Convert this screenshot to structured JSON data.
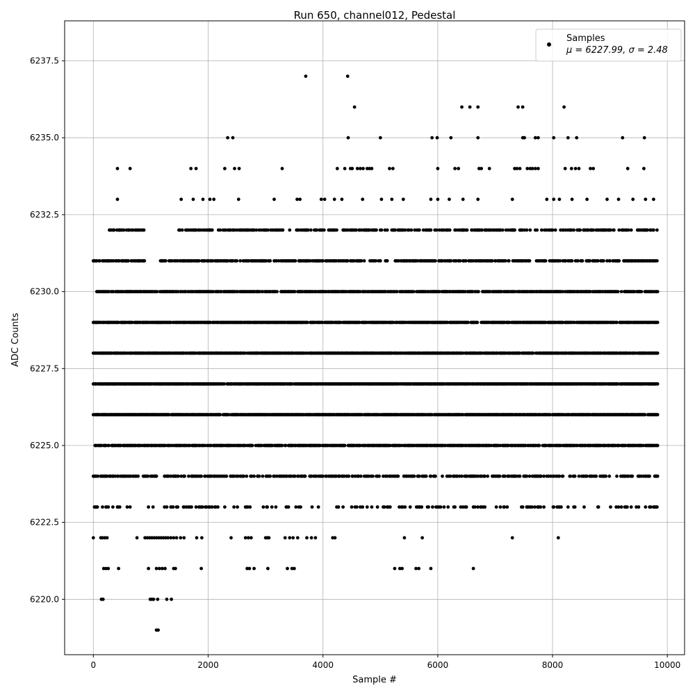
{
  "chart_data": {
    "type": "scatter",
    "title": "Run 650, channel012, Pedestal",
    "xlabel": "Sample #",
    "ylabel": "ADC Counts",
    "xlim": [
      -500,
      10300
    ],
    "ylim": [
      6218.2,
      6238.8
    ],
    "xticks": [
      0,
      2000,
      4000,
      6000,
      8000,
      10000
    ],
    "xtick_labels": [
      "0",
      "2000",
      "4000",
      "6000",
      "8000",
      "10000"
    ],
    "yticks": [
      6220.0,
      6222.5,
      6225.0,
      6227.5,
      6230.0,
      6232.5,
      6235.0,
      6237.5
    ],
    "ytick_labels": [
      "6220.0",
      "6222.5",
      "6225.0",
      "6227.5",
      "6230.0",
      "6232.5",
      "6235.0",
      "6237.5"
    ],
    "grid": true,
    "legend_position": "top-right",
    "marker_color": "#000000",
    "series": [
      {
        "name": "Samples",
        "label_line2": "μ = 6227.99, σ = 2.48",
        "mean": 6227.99,
        "sigma": 2.48,
        "x_range": [
          0,
          9840
        ],
        "sample_spacing": 10,
        "levels": [
          {
            "y": 6237,
            "x": [
              3700,
              4430
            ]
          },
          {
            "y": 6236,
            "x": [
              4550,
              6420,
              6560,
              6700,
              7400,
              7480,
              8200
            ]
          },
          {
            "y": 6235,
            "x": [
              2340,
              2430,
              4440,
              5000,
              5900,
              5990,
              6230,
              6700,
              7480,
              7510,
              7700,
              7750,
              8020,
              8270,
              8420,
              9220,
              9600
            ]
          },
          {
            "y": 6234,
            "x": [
              420,
              640,
              1700,
              1790,
              2290,
              2460,
              2540,
              3290,
              4250,
              4380,
              4480,
              4510,
              4600,
              4650,
              4700,
              4770,
              4810,
              4850,
              5160,
              5220,
              6000,
              6300,
              6360,
              6720,
              6760,
              6900,
              7340,
              7380,
              7430,
              7560,
              7610,
              7650,
              7700,
              7750,
              8220,
              8330,
              8400,
              8460,
              8660,
              8710,
              9310,
              9590
            ]
          },
          {
            "y": 6233,
            "x": [
              420,
              1530,
              1740,
              1910,
              2030,
              2100,
              2530,
              3150,
              3550,
              3600,
              3970,
              4030,
              4200,
              4330,
              4690,
              5020,
              5200,
              5400,
              5880,
              6000,
              6200,
              6440,
              6700,
              7300,
              7900,
              8020,
              8120,
              8340,
              8600,
              8950,
              9150,
              9400,
              9620,
              9760
            ]
          }
        ],
        "bands": [
          {
            "y": 6232,
            "x_start": 280,
            "x_end": 9830,
            "density": 0.38,
            "skip": [
              [
                900,
                1450
              ],
              [
                3450,
                3520
              ]
            ]
          },
          {
            "y": 6231,
            "x_start": 0,
            "x_end": 9830,
            "density": 0.5,
            "skip": [
              [
                900,
                1150
              ]
            ]
          },
          {
            "y": 6230,
            "x_start": 60,
            "x_end": 9830,
            "density": 0.62
          },
          {
            "y": 6229,
            "x_start": 0,
            "x_end": 9830,
            "density": 0.72
          },
          {
            "y": 6228,
            "x_start": 0,
            "x_end": 9830,
            "density": 0.8
          },
          {
            "y": 6227,
            "x_start": 0,
            "x_end": 9830,
            "density": 0.85
          },
          {
            "y": 6226,
            "x_start": 0,
            "x_end": 9830,
            "density": 0.78
          },
          {
            "y": 6225,
            "x_start": 0,
            "x_end": 9830,
            "density": 0.66
          },
          {
            "y": 6224,
            "x_start": 0,
            "x_end": 9830,
            "density": 0.36
          },
          {
            "y": 6223,
            "x_start": 0,
            "x_end": 9830,
            "density": 0.16
          }
        ],
        "sparse_levels": [
          {
            "y": 6222,
            "x": [
              0,
              130,
              160,
              200,
              240,
              760,
              900,
              940,
              980,
              1020,
              1060,
              1100,
              1140,
              1180,
              1220,
              1260,
              1300,
              1350,
              1400,
              1450,
              1520,
              1580,
              1800,
              1890,
              2400,
              2650,
              2700,
              2750,
              3000,
              3030,
              3060,
              3340,
              3420,
              3480,
              3560,
              3720,
              3800,
              3870,
              4170,
              4210,
              5420,
              5730,
              7300,
              8100
            ]
          },
          {
            "y": 6221,
            "x": [
              180,
              220,
              260,
              440,
              960,
              1100,
              1150,
              1200,
              1250,
              1400,
              1430,
              1880,
              2680,
              2720,
              2800,
              3040,
              3380,
              3460,
              3500,
              5250,
              5340,
              5380,
              5620,
              5670,
              5880,
              6620
            ]
          },
          {
            "y": 6220,
            "x": [
              140,
              170,
              990,
              1020,
              1050,
              1120,
              1280,
              1360
            ]
          },
          {
            "y": 6219,
            "x": [
              1100,
              1130
            ]
          }
        ]
      }
    ]
  }
}
